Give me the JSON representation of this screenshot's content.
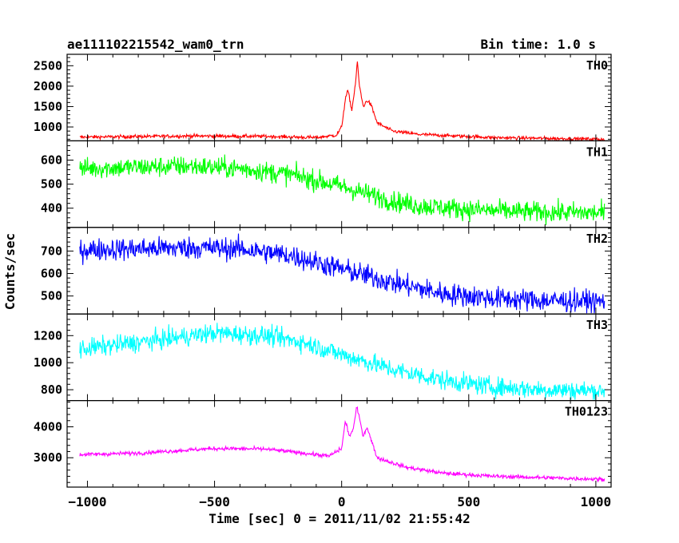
{
  "header": {
    "object_name": "ae111102215542_wam0_trn",
    "bin_time": "Bin time: 1.0 s"
  },
  "chart_data": {
    "type": "line",
    "xlabel": "Time [sec] 0 = 2011/11/02 21:55:42",
    "ylabel": "Counts/sec",
    "xlim": [
      -1080,
      1060
    ],
    "x_ticks": [
      -1000,
      -500,
      0,
      500,
      1000
    ],
    "x_tick_labels": [
      "−1000",
      "−500",
      "0",
      "500",
      "1000"
    ],
    "x_data_range": [
      -1030,
      1035
    ],
    "grid": false,
    "panels": [
      {
        "name": "TH0",
        "color": "#ff0000",
        "ylim": [
          660,
          2780
        ],
        "yticks": [
          1000,
          1500,
          2000,
          2500
        ],
        "noise": 30,
        "profile": [
          [
            -1030,
            750
          ],
          [
            -600,
            780
          ],
          [
            -300,
            770
          ],
          [
            -100,
            740
          ],
          [
            -20,
            800
          ],
          [
            0,
            1000
          ],
          [
            15,
            1700
          ],
          [
            25,
            1900
          ],
          [
            40,
            1400
          ],
          [
            55,
            2100
          ],
          [
            62,
            2600
          ],
          [
            70,
            2000
          ],
          [
            85,
            1500
          ],
          [
            100,
            1650
          ],
          [
            115,
            1550
          ],
          [
            140,
            1100
          ],
          [
            200,
            900
          ],
          [
            300,
            820
          ],
          [
            600,
            740
          ],
          [
            1035,
            700
          ]
        ]
      },
      {
        "name": "TH1",
        "color": "#00ff00",
        "ylim": [
          320,
          680
        ],
        "yticks": [
          400,
          500,
          600
        ],
        "noise": 30,
        "profile": [
          [
            -1030,
            565
          ],
          [
            -600,
            575
          ],
          [
            -400,
            565
          ],
          [
            -200,
            540
          ],
          [
            0,
            490
          ],
          [
            100,
            460
          ],
          [
            200,
            430
          ],
          [
            300,
            410
          ],
          [
            500,
            395
          ],
          [
            700,
            385
          ],
          [
            1035,
            380
          ]
        ]
      },
      {
        "name": "TH2",
        "color": "#0000ff",
        "ylim": [
          420,
          805
        ],
        "yticks": [
          500,
          600,
          700
        ],
        "noise": 35,
        "profile": [
          [
            -1030,
            705
          ],
          [
            -600,
            715
          ],
          [
            -400,
            710
          ],
          [
            -200,
            680
          ],
          [
            0,
            620
          ],
          [
            200,
            560
          ],
          [
            400,
            510
          ],
          [
            600,
            490
          ],
          [
            800,
            480
          ],
          [
            1035,
            475
          ]
        ]
      },
      {
        "name": "TH3",
        "color": "#00ffff",
        "ylim": [
          720,
          1360
        ],
        "yticks": [
          800,
          1000,
          1200
        ],
        "noise": 50,
        "profile": [
          [
            -1030,
            1100
          ],
          [
            -800,
            1150
          ],
          [
            -500,
            1220
          ],
          [
            -300,
            1200
          ],
          [
            -150,
            1150
          ],
          [
            0,
            1060
          ],
          [
            200,
            950
          ],
          [
            400,
            870
          ],
          [
            600,
            820
          ],
          [
            800,
            800
          ],
          [
            1035,
            790
          ]
        ]
      },
      {
        "name": "TH0123",
        "color": "#ff00ff",
        "ylim": [
          2050,
          4850
        ],
        "yticks": [
          3000,
          4000
        ],
        "noise": 45,
        "profile": [
          [
            -1030,
            3100
          ],
          [
            -800,
            3150
          ],
          [
            -500,
            3300
          ],
          [
            -300,
            3280
          ],
          [
            -150,
            3150
          ],
          [
            -50,
            3050
          ],
          [
            0,
            3300
          ],
          [
            15,
            4200
          ],
          [
            30,
            3700
          ],
          [
            45,
            3900
          ],
          [
            60,
            4650
          ],
          [
            72,
            4200
          ],
          [
            85,
            3700
          ],
          [
            100,
            4000
          ],
          [
            115,
            3600
          ],
          [
            140,
            3000
          ],
          [
            250,
            2700
          ],
          [
            400,
            2500
          ],
          [
            600,
            2400
          ],
          [
            1035,
            2300
          ]
        ]
      }
    ]
  }
}
